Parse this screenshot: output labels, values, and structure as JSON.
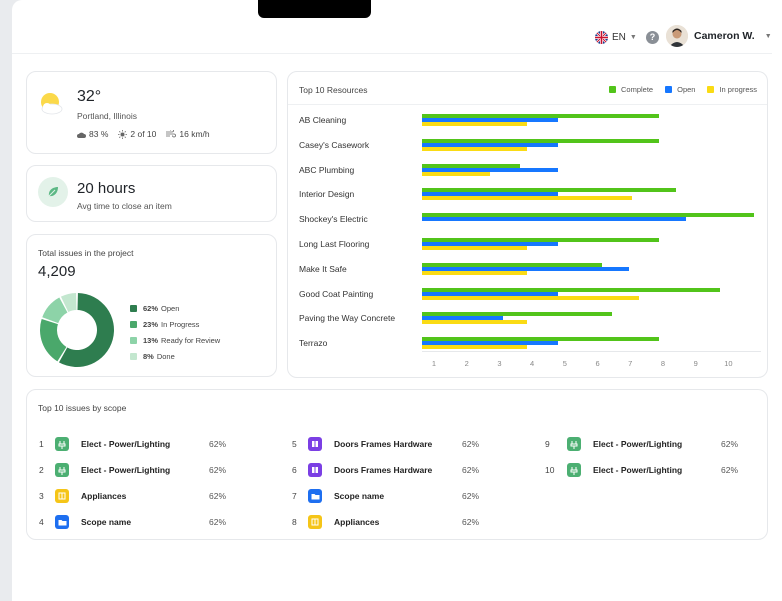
{
  "header": {
    "lang": "EN",
    "help": "?",
    "user_name": "Cameron W."
  },
  "weather": {
    "temp": "32°",
    "city": "Portland, Illinois",
    "humidity": "83 %",
    "uv": "2 of 10",
    "wind": "16 km/h",
    "icon": "sun-cloud-icon"
  },
  "avg_time": {
    "value": "20 hours",
    "label": "Avg time to close an item",
    "icon": "leaf-icon"
  },
  "issues": {
    "title": "Total issues in the project",
    "total": "4,209",
    "legend": [
      {
        "pct": "62%",
        "label": "Open",
        "color": "#2e7d4f",
        "value": 62
      },
      {
        "pct": "23%",
        "label": "In Progress",
        "color": "#4aa86b",
        "value": 23
      },
      {
        "pct": "13%",
        "label": "Ready for Review",
        "color": "#8dd3a8",
        "value": 13
      },
      {
        "pct": "8%",
        "label": "Done",
        "color": "#c3e7cf",
        "value": 8
      }
    ]
  },
  "resources": {
    "title": "Top 10 Resources",
    "legend": [
      {
        "label": "Complete",
        "color": "#52c41a"
      },
      {
        "label": "Open",
        "color": "#1677ff"
      },
      {
        "label": "In progress",
        "color": "#fadb14"
      }
    ]
  },
  "chart_data": {
    "type": "bar",
    "orientation": "horizontal",
    "title": "Top 10 Resources",
    "categories": [
      "AB Cleaning",
      "Casey's Casework",
      "ABC Plumbing",
      "Interior Design",
      "Shockey's Electric",
      "Long Last Flooring",
      "Make It Safe",
      "Good Coat Painting",
      "Paving the Way Concrete",
      "Terrazo"
    ],
    "series": [
      {
        "name": "Complete",
        "color": "#52c41a",
        "values": [
          7,
          7,
          2.9,
          7.5,
          9.8,
          7,
          5.3,
          8.8,
          5.6,
          7
        ]
      },
      {
        "name": "Open",
        "color": "#1677ff",
        "values": [
          4,
          4,
          4,
          4,
          7.8,
          4,
          6.1,
          4,
          2.4,
          4
        ]
      },
      {
        "name": "In progress",
        "color": "#fadb14",
        "values": [
          3.1,
          3.1,
          2,
          6.2,
          0,
          3.1,
          3.1,
          6.4,
          3.1,
          3.1
        ]
      }
    ],
    "xticks": [
      "1",
      "2",
      "3",
      "4",
      "5",
      "6",
      "7",
      "8",
      "9",
      "10"
    ],
    "xlim": [
      0,
      10
    ]
  },
  "scope": {
    "title": "Top 10 issues by scope",
    "items": [
      {
        "num": "1",
        "name": "Elect - Power/Lighting",
        "pct": "62%",
        "icon": "electric-icon",
        "color": "#4caf72"
      },
      {
        "num": "2",
        "name": "Elect - Power/Lighting",
        "pct": "62%",
        "icon": "electric-icon",
        "color": "#4caf72"
      },
      {
        "num": "3",
        "name": "Appliances",
        "pct": "62%",
        "icon": "appliance-icon",
        "color": "#f5c518"
      },
      {
        "num": "4",
        "name": "Scope name",
        "pct": "62%",
        "icon": "folder-icon",
        "color": "#1e6ff0"
      },
      {
        "num": "5",
        "name": "Doors Frames Hardware",
        "pct": "62%",
        "icon": "door-icon",
        "color": "#7b3fe4"
      },
      {
        "num": "6",
        "name": "Doors Frames Hardware",
        "pct": "62%",
        "icon": "door-icon",
        "color": "#7b3fe4"
      },
      {
        "num": "7",
        "name": "Scope name",
        "pct": "62%",
        "icon": "folder-icon",
        "color": "#1e6ff0"
      },
      {
        "num": "8",
        "name": "Appliances",
        "pct": "62%",
        "icon": "appliance-icon",
        "color": "#f5c518"
      },
      {
        "num": "9",
        "name": "Elect - Power/Lighting",
        "pct": "62%",
        "icon": "electric-icon",
        "color": "#4caf72"
      },
      {
        "num": "10",
        "name": "Elect - Power/Lighting",
        "pct": "62%",
        "icon": "electric-icon",
        "color": "#4caf72"
      }
    ]
  }
}
